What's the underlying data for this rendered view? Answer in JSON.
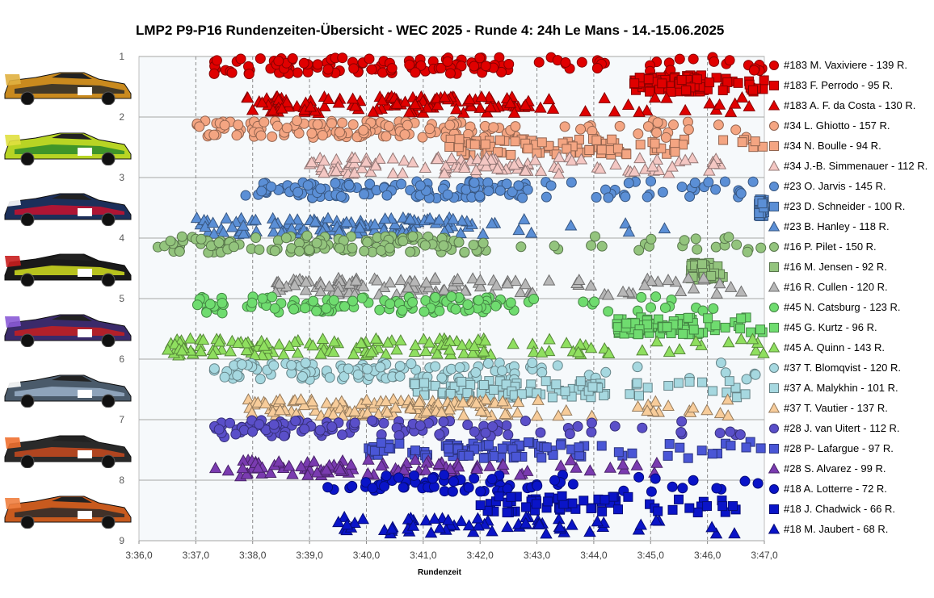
{
  "title": "LMP2 P9-P16 Rundenzeiten-Übersicht - WEC 2025 - Runde 4: 24h Le Mans - 14.-15.06.2025",
  "chart_data": {
    "type": "scatter",
    "xlabel": "Rundenzeit",
    "ylabel": "",
    "x_tick_labels": [
      "3:36,0",
      "3:37,0",
      "3:38,0",
      "3:39,0",
      "3:40,0",
      "3:41,0",
      "3:42,0",
      "3:43,0",
      "3:44,0",
      "3:45,0",
      "3:46,0",
      "3:47,0"
    ],
    "y_tick_labels": [
      "1",
      "2",
      "3",
      "4",
      "5",
      "6",
      "7",
      "8",
      "9"
    ],
    "xlim_seconds": [
      216.0,
      227.0
    ],
    "ylim": [
      1,
      9
    ],
    "grid": "vertical dashed, horizontal solid",
    "legend_position": "right",
    "series": [
      {
        "name": "#183 M. Vaxiviere - 139 R.",
        "marker": "circle",
        "color": "#e00000",
        "y_row": 1.15,
        "x_range": [
          217.3,
          227.0
        ],
        "laps": 139
      },
      {
        "name": "#183 F. Perrodo - 95 R.",
        "marker": "square",
        "color": "#e00000",
        "y_row": 1.45,
        "x_range": [
          224.7,
          227.0
        ],
        "laps": 95
      },
      {
        "name": "#183 A. F. da Costa - 130 R.",
        "marker": "triangle",
        "color": "#e00000",
        "y_row": 1.8,
        "x_range": [
          217.9,
          227.0
        ],
        "laps": 130
      },
      {
        "name": "#34 L. Ghiotto - 157 R.",
        "marker": "circle",
        "color": "#f4a582",
        "y_row": 2.2,
        "x_range": [
          217.0,
          227.0
        ],
        "laps": 157
      },
      {
        "name": "#34 N. Boulle - 94 R.",
        "marker": "square",
        "color": "#f4a582",
        "y_row": 2.5,
        "x_range": [
          221.4,
          227.0
        ],
        "laps": 94
      },
      {
        "name": "#34 J.-B. Simmenauer - 112 R.",
        "marker": "triangle",
        "color": "#f4c7c3",
        "y_row": 2.8,
        "x_range": [
          219.0,
          227.0
        ],
        "laps": 112
      },
      {
        "name": "#23 O. Jarvis - 145 R.",
        "marker": "circle",
        "color": "#5b8fd6",
        "y_row": 3.2,
        "x_range": [
          217.8,
          227.0
        ],
        "laps": 145
      },
      {
        "name": "#23 D. Schneider - 100 R.",
        "marker": "square",
        "color": "#5b8fd6",
        "y_row": 3.5,
        "x_range": [
          226.9,
          227.0
        ],
        "laps": 100
      },
      {
        "name": "#23 B. Hanley - 118 R.",
        "marker": "triangle",
        "color": "#5b8fd6",
        "y_row": 3.8,
        "x_range": [
          217.0,
          225.7
        ],
        "laps": 118
      },
      {
        "name": "#16 P. Pilet - 150 R.",
        "marker": "circle",
        "color": "#93c47d",
        "y_row": 4.1,
        "x_range": [
          216.3,
          227.0
        ],
        "laps": 150
      },
      {
        "name": "#16 M. Jensen - 92 R.",
        "marker": "square",
        "color": "#93c47d",
        "y_row": 4.55,
        "x_range": [
          225.7,
          226.3
        ],
        "laps": 92
      },
      {
        "name": "#16 R. Cullen - 120 R.",
        "marker": "triangle",
        "color": "#b7b7b7",
        "y_row": 4.8,
        "x_range": [
          218.4,
          226.6
        ],
        "laps": 120
      },
      {
        "name": "#45 N. Catsburg - 123 R.",
        "marker": "circle",
        "color": "#6fdc6f",
        "y_row": 5.1,
        "x_range": [
          217.0,
          226.7
        ],
        "laps": 123
      },
      {
        "name": "#45 G. Kurtz - 96 R.",
        "marker": "square",
        "color": "#6fdc6f",
        "y_row": 5.45,
        "x_range": [
          224.4,
          227.0
        ],
        "laps": 96
      },
      {
        "name": "#45 A. Quinn - 143 R.",
        "marker": "triangle",
        "color": "#8fdf5f",
        "y_row": 5.8,
        "x_range": [
          216.5,
          227.0
        ],
        "laps": 143
      },
      {
        "name": "#37 T. Blomqvist - 120 R.",
        "marker": "circle",
        "color": "#a6d8e0",
        "y_row": 6.2,
        "x_range": [
          217.3,
          227.0
        ],
        "laps": 120
      },
      {
        "name": "#37 A. Malykhin - 101 R.",
        "marker": "square",
        "color": "#a6d8e0",
        "y_row": 6.5,
        "x_range": [
          220.8,
          227.0
        ],
        "laps": 101
      },
      {
        "name": "#37 T. Vautier - 137 R.",
        "marker": "triangle",
        "color": "#f7cc9a",
        "y_row": 6.8,
        "x_range": [
          217.7,
          226.5
        ],
        "laps": 137
      },
      {
        "name": "#28 J. van Uitert - 112 R.",
        "marker": "circle",
        "color": "#5a4fc9",
        "y_row": 7.15,
        "x_range": [
          217.3,
          227.0
        ],
        "laps": 112
      },
      {
        "name": "#28 P- Lafargue - 97 R.",
        "marker": "square",
        "color": "#4a56d6",
        "y_row": 7.5,
        "x_range": [
          220.0,
          227.0
        ],
        "laps": 97
      },
      {
        "name": "#28 S. Alvarez - 99 R.",
        "marker": "triangle",
        "color": "#7a3bb0",
        "y_row": 7.8,
        "x_range": [
          217.3,
          226.8
        ],
        "laps": 99
      },
      {
        "name": "#18 A. Lotterre - 72 R.",
        "marker": "circle",
        "color": "#0a14c8",
        "y_row": 8.05,
        "x_range": [
          219.3,
          227.0
        ],
        "laps": 72
      },
      {
        "name": "#18 J. Chadwick - 66 R.",
        "marker": "square",
        "color": "#0a14c8",
        "y_row": 8.4,
        "x_range": [
          222.0,
          226.5
        ],
        "laps": 66
      },
      {
        "name": "#18 M. Jaubert - 68 R.",
        "marker": "triangle",
        "color": "#0a14c8",
        "y_row": 8.75,
        "x_range": [
          219.3,
          226.9
        ],
        "laps": 68
      }
    ]
  },
  "cars": [
    {
      "number": "#183",
      "livery": [
        "#c98a1e",
        "#2a2a2a",
        "#e0b040"
      ]
    },
    {
      "number": "#34",
      "livery": [
        "#b8d424",
        "#2a8a2a",
        "#e0e040"
      ]
    },
    {
      "number": "#23",
      "livery": [
        "#1c2f5a",
        "#c8102e",
        "#ffffff"
      ]
    },
    {
      "number": "#16",
      "livery": [
        "#1a1a1a",
        "#d4e020",
        "#c81e1e"
      ]
    },
    {
      "number": "#45",
      "livery": [
        "#3a2a6a",
        "#c81e1e",
        "#8a5ad6"
      ]
    },
    {
      "number": "#37",
      "livery": [
        "#4a5a6a",
        "#9ab0c8",
        "#ffffff"
      ]
    },
    {
      "number": "#28",
      "livery": [
        "#2a2a2a",
        "#c84a1e",
        "#f07030"
      ]
    },
    {
      "number": "#18",
      "livery": [
        "#c85a1e",
        "#2a2a2a",
        "#f08040"
      ]
    }
  ]
}
